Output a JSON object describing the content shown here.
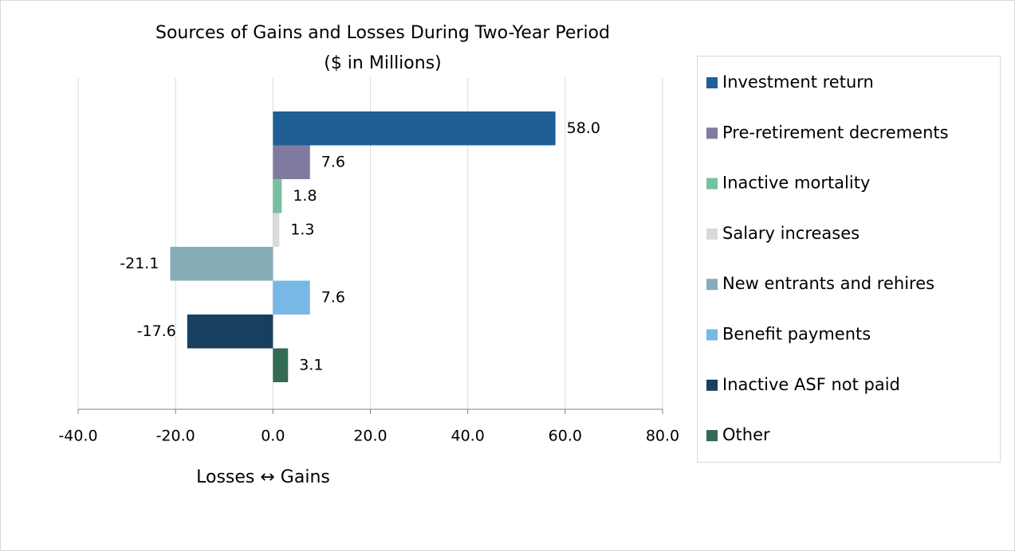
{
  "chart_data": {
    "type": "bar",
    "orientation": "horizontal",
    "title": "Sources of Gains and Losses During Two-Year Period",
    "subtitle": "($ in Millions)",
    "x_label": "Losses ↔ Gains",
    "series": [
      {
        "name": "Investment return",
        "color": "#1f5f95",
        "values": [
          58.0
        ],
        "value_labels": [
          "58.0"
        ]
      },
      {
        "name": "Pre-retirement decrements",
        "color": "#7f7ba0",
        "values": [
          7.6
        ],
        "value_labels": [
          "7.6"
        ]
      },
      {
        "name": "Inactive mortality",
        "color": "#76c0a0",
        "values": [
          1.8
        ],
        "value_labels": [
          "1.8"
        ]
      },
      {
        "name": "Salary increases",
        "color": "#d9d9d9",
        "values": [
          1.3
        ],
        "value_labels": [
          "1.3"
        ]
      },
      {
        "name": "New entrants and rehires",
        "color": "#86aeb8",
        "values": [
          -21.1
        ],
        "value_labels": [
          "-21.1"
        ]
      },
      {
        "name": "Benefit payments",
        "color": "#78b8e6",
        "values": [
          7.6
        ],
        "value_labels": [
          "7.6"
        ]
      },
      {
        "name": "Inactive ASF not paid",
        "color": "#173f60",
        "values": [
          -17.6
        ],
        "value_labels": [
          "-17.6"
        ]
      },
      {
        "name": "Other",
        "color": "#336b55",
        "values": [
          3.1
        ],
        "value_labels": [
          "3.1"
        ]
      }
    ],
    "xlim": [
      -40,
      80
    ],
    "xticks": [
      {
        "value": -40,
        "label": "-40.0"
      },
      {
        "value": -20,
        "label": "-20.0"
      },
      {
        "value": 0,
        "label": "0.0"
      },
      {
        "value": 20,
        "label": "20.0"
      },
      {
        "value": 40,
        "label": "40.0"
      },
      {
        "value": 60,
        "label": "60.0"
      },
      {
        "value": 80,
        "label": "80.0"
      }
    ],
    "grid": true,
    "legend": "right"
  }
}
